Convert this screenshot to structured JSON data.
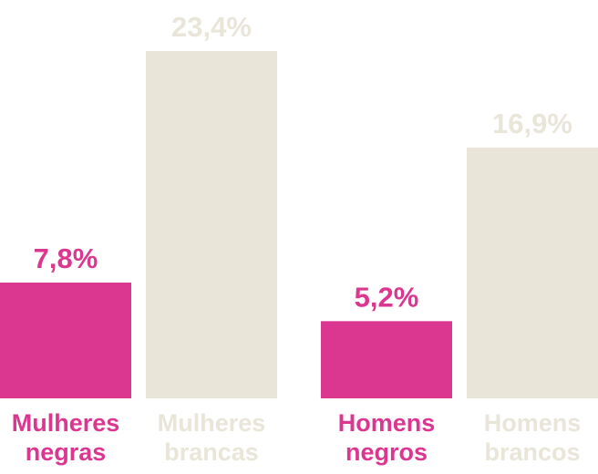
{
  "chart_data": {
    "type": "bar",
    "categories": [
      [
        "Mulheres",
        "negras"
      ],
      [
        "Mulheres",
        "brancas"
      ],
      [
        "Homens",
        "negros"
      ],
      [
        "Homens",
        "brancos"
      ]
    ],
    "values": [
      7.8,
      23.4,
      5.2,
      16.9
    ],
    "value_labels": [
      "7,8%",
      "23,4%",
      "5,2%",
      "16,9%"
    ],
    "title": "",
    "xlabel": "",
    "ylabel": "",
    "ylim": [
      0,
      23.4
    ],
    "grid": false,
    "legend": "none",
    "colors": {
      "highlight": "#db3790",
      "muted_bar": "#e9e5d9",
      "muted_text": "#e9e5d9"
    },
    "bar_colors": [
      "highlight",
      "muted_bar",
      "highlight",
      "muted_bar"
    ]
  }
}
